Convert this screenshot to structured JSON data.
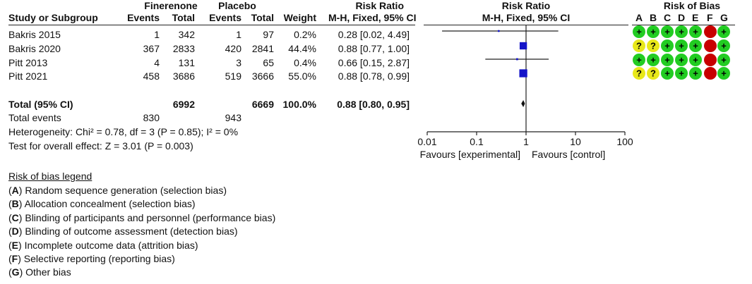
{
  "chart_data": {
    "type": "forest",
    "groups": {
      "experimental": "Finerenone",
      "control": "Placebo"
    },
    "columns": {
      "study": "Study or Subgroup",
      "events1": "Events",
      "total1": "Total",
      "events2": "Events",
      "total2": "Total",
      "weight": "Weight",
      "rr_title": "Risk Ratio",
      "rr_method": "M-H, Fixed, 95% CI",
      "plot_title": "Risk Ratio",
      "plot_method": "M-H, Fixed, 95% CI",
      "bias_title": "Risk of Bias"
    },
    "bias_letters": [
      "A",
      "B",
      "C",
      "D",
      "E",
      "F",
      "G"
    ],
    "studies": [
      {
        "name": "Bakris 2015",
        "e1": "1",
        "t1": "342",
        "e2": "1",
        "t2": "97",
        "weight": "0.2%",
        "ci_text": "0.28 [0.02, 4.49]",
        "rr": 0.28,
        "lo": 0.02,
        "hi": 4.49,
        "w": 0.2,
        "bias": [
          "+",
          "+",
          "+",
          "+",
          "+",
          "-",
          "+"
        ]
      },
      {
        "name": "Bakris 2020",
        "e1": "367",
        "t1": "2833",
        "e2": "420",
        "t2": "2841",
        "weight": "44.4%",
        "ci_text": "0.88 [0.77, 1.00]",
        "rr": 0.88,
        "lo": 0.77,
        "hi": 1.0,
        "w": 44.4,
        "bias": [
          "?",
          "?",
          "+",
          "+",
          "+",
          "-",
          "+"
        ]
      },
      {
        "name": "Pitt 2013",
        "e1": "4",
        "t1": "131",
        "e2": "3",
        "t2": "65",
        "weight": "0.4%",
        "ci_text": "0.66 [0.15, 2.87]",
        "rr": 0.66,
        "lo": 0.15,
        "hi": 2.87,
        "w": 0.4,
        "bias": [
          "+",
          "+",
          "+",
          "+",
          "+",
          "-",
          "+"
        ]
      },
      {
        "name": "Pitt 2021",
        "e1": "458",
        "t1": "3686",
        "e2": "519",
        "t2": "3666",
        "weight": "55.0%",
        "ci_text": "0.88 [0.78, 0.99]",
        "rr": 0.88,
        "lo": 0.78,
        "hi": 0.99,
        "w": 55.0,
        "bias": [
          "?",
          "?",
          "+",
          "+",
          "+",
          "-",
          "+"
        ]
      }
    ],
    "total": {
      "label": "Total (95% CI)",
      "t1": "6992",
      "t2": "6669",
      "weight": "100.0%",
      "ci_text": "0.88 [0.80, 0.95]",
      "rr": 0.88,
      "lo": 0.8,
      "hi": 0.95
    },
    "total_events": {
      "label": "Total events",
      "e1": "830",
      "e2": "943"
    },
    "heterogeneity": "Heterogeneity: Chi² = 0.78, df = 3 (P = 0.85); I² = 0%",
    "overall_effect": "Test for overall effect: Z = 3.01 (P = 0.003)",
    "axis": {
      "scale": "log",
      "ticks": [
        0.01,
        0.1,
        1,
        10,
        100
      ],
      "tick_labels": [
        "0.01",
        "0.1",
        "1",
        "10",
        "100"
      ],
      "xlim": [
        0.01,
        100
      ]
    },
    "favours_left": "Favours [experimental]",
    "favours_right": "Favours [control]",
    "colors": {
      "square": "#1414c8",
      "plus": "#22cc22",
      "question": "#e8e81a",
      "minus": "#c80000"
    }
  },
  "legend": {
    "title": "Risk of bias legend",
    "items": [
      {
        "key": "A",
        "text": "Random sequence generation (selection bias)"
      },
      {
        "key": "B",
        "text": "Allocation concealment (selection bias)"
      },
      {
        "key": "C",
        "text": "Blinding of participants and personnel (performance bias)"
      },
      {
        "key": "D",
        "text": "Blinding of outcome assessment (detection bias)"
      },
      {
        "key": "E",
        "text": "Incomplete outcome data (attrition bias)"
      },
      {
        "key": "F",
        "text": "Selective reporting (reporting bias)"
      },
      {
        "key": "G",
        "text": "Other bias"
      }
    ]
  }
}
